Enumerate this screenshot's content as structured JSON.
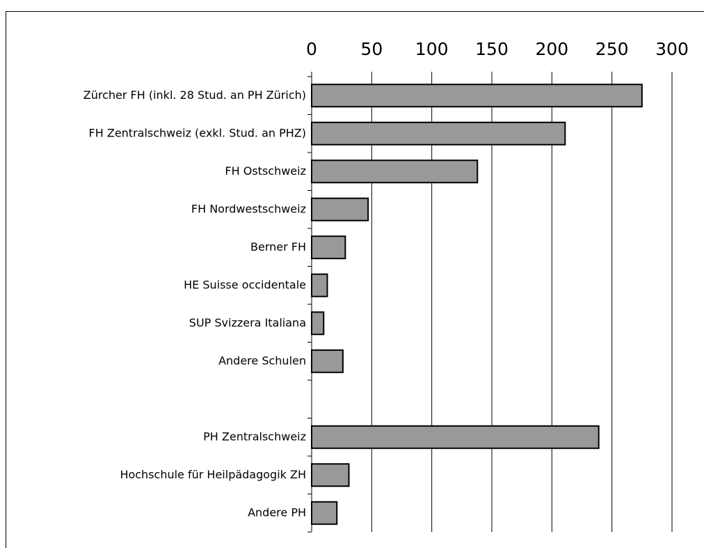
{
  "chart_data": {
    "type": "bar",
    "orientation": "horizontal",
    "categories": [
      "Zürcher FH (inkl. 28 Stud. an PH Zürich)",
      "FH Zentralschweiz (exkl. Stud. an PHZ)",
      "FH Ostschweiz",
      "FH Nordwestschweiz",
      "Berner FH",
      "HE Suisse occidentale",
      "SUP Svizzera Italiana",
      "Andere Schulen",
      null,
      "PH Zentralschweiz",
      "Hochschule für Heilpädagogik ZH",
      "Andere PH"
    ],
    "values": [
      275,
      211,
      138,
      47,
      28,
      13,
      10,
      26,
      null,
      239,
      31,
      21
    ],
    "color": "#999999",
    "xlim": [
      0,
      300
    ],
    "xticks": [
      0,
      50,
      100,
      150,
      200,
      250,
      300
    ],
    "grid": true
  }
}
